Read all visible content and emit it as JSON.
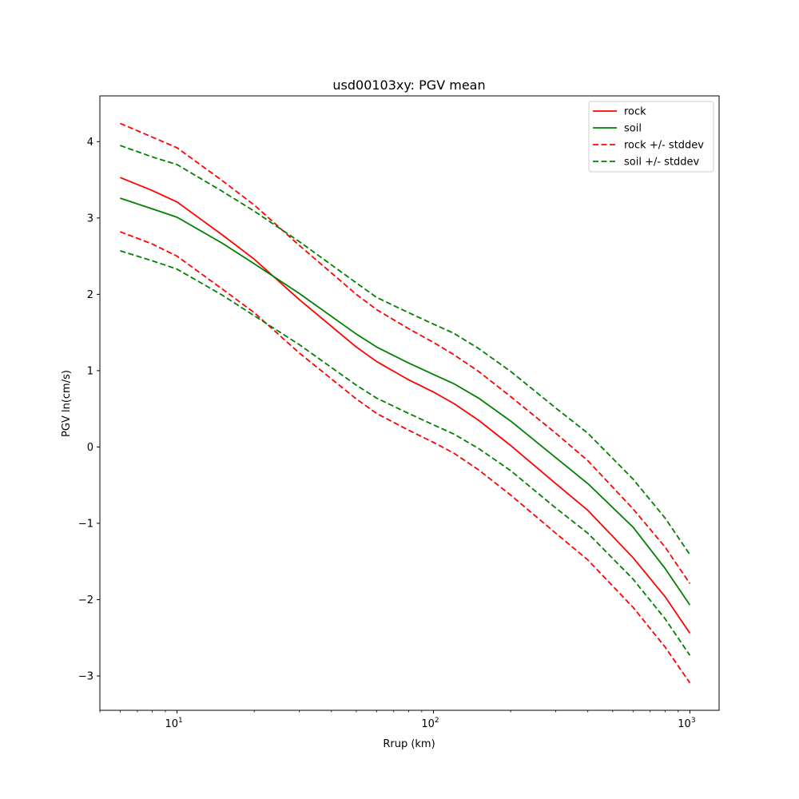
{
  "chart_data": {
    "type": "line",
    "title": "usd00103xy: PGV mean",
    "xlabel": "Rrup (km)",
    "ylabel": "PGV ln(cm/s)",
    "xscale": "log",
    "xlim": [
      5,
      1300
    ],
    "ylim": [
      -3.45,
      4.6
    ],
    "x_ticks": [
      {
        "value": 10,
        "base": "10",
        "exp": "1"
      },
      {
        "value": 100,
        "base": "10",
        "exp": "2"
      },
      {
        "value": 1000,
        "base": "10",
        "exp": "3"
      }
    ],
    "y_ticks": [
      {
        "value": -3,
        "label": "−3"
      },
      {
        "value": -2,
        "label": "−2"
      },
      {
        "value": -1,
        "label": "−1"
      },
      {
        "value": 0,
        "label": "0"
      },
      {
        "value": 1,
        "label": "1"
      },
      {
        "value": 2,
        "label": "2"
      },
      {
        "value": 3,
        "label": "3"
      },
      {
        "value": 4,
        "label": "4"
      }
    ],
    "grid": false,
    "legend_position": "top-right",
    "x": [
      6,
      8,
      10,
      15,
      20,
      30,
      50,
      60,
      80,
      100,
      120,
      150,
      200,
      300,
      400,
      600,
      800,
      1000
    ],
    "series": [
      {
        "name": "rock",
        "color": "#ff0000",
        "dashed": false,
        "values": [
          3.53,
          3.36,
          3.21,
          2.78,
          2.46,
          1.93,
          1.31,
          1.12,
          0.88,
          0.72,
          0.57,
          0.35,
          0.02,
          -0.48,
          -0.83,
          -1.45,
          -1.96,
          -2.44
        ]
      },
      {
        "name": "soil",
        "color": "#008000",
        "dashed": false,
        "values": [
          3.26,
          3.12,
          3.01,
          2.67,
          2.4,
          2.01,
          1.48,
          1.31,
          1.1,
          0.95,
          0.83,
          0.64,
          0.34,
          -0.14,
          -0.48,
          -1.05,
          -1.59,
          -2.07
        ]
      },
      {
        "name": "rock +/- stddev",
        "color": "#ff0000",
        "dashed": true,
        "values": [
          4.24,
          4.06,
          3.92,
          3.49,
          3.17,
          2.64,
          2.0,
          1.8,
          1.55,
          1.37,
          1.21,
          0.99,
          0.66,
          0.18,
          -0.18,
          -0.81,
          -1.31,
          -1.79
        ]
      },
      {
        "name": "",
        "color": "#ff0000",
        "dashed": true,
        "values": [
          2.82,
          2.66,
          2.5,
          2.07,
          1.76,
          1.23,
          0.63,
          0.44,
          0.22,
          0.06,
          -0.08,
          -0.3,
          -0.63,
          -1.13,
          -1.48,
          -2.1,
          -2.62,
          -3.09
        ]
      },
      {
        "name": "soil +/- stddev",
        "color": "#008000",
        "dashed": true,
        "values": [
          3.95,
          3.8,
          3.7,
          3.35,
          3.09,
          2.69,
          2.15,
          1.96,
          1.76,
          1.61,
          1.49,
          1.29,
          0.99,
          0.51,
          0.18,
          -0.42,
          -0.93,
          -1.41
        ]
      },
      {
        "name": "",
        "color": "#008000",
        "dashed": true,
        "values": [
          2.57,
          2.44,
          2.33,
          1.99,
          1.72,
          1.34,
          0.81,
          0.64,
          0.44,
          0.29,
          0.17,
          -0.02,
          -0.31,
          -0.8,
          -1.13,
          -1.73,
          -2.25,
          -2.73
        ]
      }
    ]
  }
}
